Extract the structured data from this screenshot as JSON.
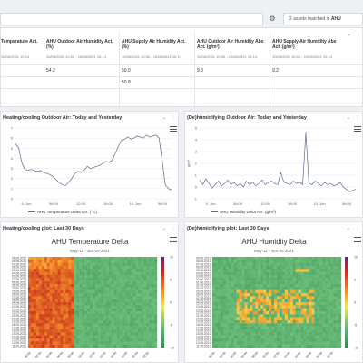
{
  "topbar": {
    "matched_count": "2 assets matched in",
    "matched_group": "AHU"
  },
  "table": {
    "columns": [
      {
        "title": "Temperature Act.",
        "sub": "10/06/2021 10:14",
        "value": "",
        "value2": ""
      },
      {
        "title": "AHU Outdoor Air Humidity Act. (%)",
        "sub": "10/06/2021 10:00 - 10/06/2021 10:14",
        "value": "54.2",
        "value2": ""
      },
      {
        "title": "AHU Supply Air Humidity Act. (%)",
        "sub": "10/06/2021 10:00 - 10/06/2021 10:14",
        "value": "50.0",
        "value2": "50.8"
      },
      {
        "title": "AHU Outdoor Air Humidity Abs Act. (g/m³)",
        "sub": "10/06/2021 10:00 - 10/06/2021 10:14",
        "value": "9.3",
        "value2": ""
      },
      {
        "title": "AHU Supply Air Humidity Abs Act. (g/m³)",
        "sub": "10/06/2021 10:00 - 10/06/2021 10:14",
        "value": "9.2",
        "value2": ""
      }
    ]
  },
  "panels": {
    "p1": {
      "title": "Heating/cooling Outdoor Air: Today and Yesterday",
      "legend": "AHU Temperature Delta Act. (°C)"
    },
    "p2": {
      "title": "(De)humidifying Outdoor Air: Today and Yesterday",
      "legend": "AHU Humidity Delta Act. (g/m³)"
    },
    "p3": {
      "title": "Heating/cooling plot: Last 30 Days",
      "chart_title": "AHU Temperature Delta",
      "chart_sub": "May-11 - Jun-09 2021"
    },
    "p4": {
      "title": "(De)humidifying plot: Last 30 Days",
      "chart_title": "AHU Humidity Delta",
      "chart_sub": "May-11 - Jun-09 2021"
    }
  },
  "chart_data": [
    {
      "type": "line",
      "title": "",
      "x_ticks": [
        "9. Jun",
        "06:00",
        "12:00",
        "18:00",
        "10. Jun",
        "06:00"
      ],
      "y_ticks": [
        "0",
        "1",
        "2",
        "3",
        "4",
        "5",
        "6",
        "7"
      ],
      "ylim": [
        0,
        7
      ],
      "series": [
        {
          "name": "AHU Temperature Delta Act. (°C)",
          "x": [
            0,
            2,
            4,
            6,
            8,
            10,
            12,
            14,
            16,
            18,
            20,
            22,
            24,
            26,
            28,
            30,
            32,
            34,
            36,
            38,
            40,
            42,
            44,
            46,
            48,
            50,
            52,
            54,
            56,
            58,
            60,
            62,
            64,
            66,
            68,
            70,
            72,
            74,
            76,
            78,
            80,
            82,
            84,
            86,
            88,
            90,
            92,
            94,
            96,
            98,
            100
          ],
          "values": [
            5.4,
            5.1,
            3.6,
            2.9,
            2.8,
            2.9,
            2.8,
            2.7,
            2.8,
            2.6,
            2.5,
            2.4,
            2.2,
            1.9,
            1.6,
            1.4,
            1.3,
            1.6,
            2.0,
            2.5,
            2.7,
            2.6,
            2.8,
            3.2,
            3.0,
            3.1,
            3.2,
            3.3,
            3.5,
            3.7,
            3.6,
            3.8,
            4.5,
            5.2,
            5.8,
            5.9,
            6.1,
            5.9,
            6.0,
            6.2,
            6.1,
            6.0,
            6.3,
            6.1,
            6.2,
            6.3,
            6.0,
            3.8,
            1.4,
            1.0,
            0.9
          ]
        }
      ]
    },
    {
      "type": "line",
      "title": "",
      "x_ticks": [
        "9. Jun",
        "06:00",
        "12:00",
        "18:00",
        "10. Jun",
        "06:00"
      ],
      "y_ticks": [
        "-1",
        "0",
        "1",
        "2",
        "3",
        "4",
        "5"
      ],
      "ylim": [
        -1,
        5
      ],
      "ylabel": "g/m³",
      "series": [
        {
          "name": "AHU Humidity Delta Act. (g/m³)",
          "x": [
            0,
            2,
            4,
            6,
            8,
            10,
            12,
            14,
            16,
            18,
            20,
            22,
            24,
            26,
            28,
            30,
            32,
            34,
            36,
            38,
            40,
            42,
            44,
            46,
            48,
            50,
            52,
            54,
            56,
            58,
            60,
            62,
            64,
            66,
            68,
            70,
            72,
            74,
            76,
            78,
            80,
            82,
            84,
            86,
            88,
            90,
            92,
            94,
            96,
            98,
            100
          ],
          "values": [
            0.6,
            0.2,
            0.7,
            0.3,
            -0.1,
            0.2,
            0.5,
            0.1,
            0.3,
            0.6,
            0.2,
            0.4,
            0.1,
            0.3,
            0.0,
            0.5,
            0.2,
            0.4,
            0.1,
            0.3,
            0.6,
            0.2,
            0.4,
            0.5,
            0.3,
            0.2,
            1.2,
            0.4,
            0.3,
            0.2,
            0.5,
            0.3,
            0.4,
            0.2,
            4.6,
            0.3,
            0.2,
            0.5,
            0.3,
            0.1,
            0.4,
            0.2,
            0.3,
            0.1,
            0.2,
            0.4,
            0.0,
            -0.2,
            -0.4,
            -0.3,
            -0.2
          ]
        }
      ]
    },
    {
      "type": "heatmap",
      "title": "AHU Temperature Delta",
      "subtitle": "May-11 - Jun-09 2021",
      "y_labels": [
        "09.06.2021",
        "08.06.2021",
        "07.06.2021",
        "06.06.2021",
        "05.06.2021",
        "04.06.2021",
        "03.06.2021",
        "02.06.2021",
        "01.06.2021",
        "31.05.2021",
        "30.05.2021",
        "29.05.2021",
        "28.05.2021",
        "27.05.2021",
        "26.05.2021",
        "25.05.2021",
        "24.05.2021",
        "23.05.2021",
        "22.05.2021",
        "21.05.2021",
        "20.05.2021",
        "19.05.2021",
        "18.05.2021",
        "17.05.2021",
        "16.05.2021",
        "15.05.2021",
        "14.05.2021",
        "13.05.2021",
        "12.05.2021",
        "11.05.2021"
      ],
      "x_labels": [
        "00:00",
        "02:00",
        "04:00",
        "06:00",
        "08:00",
        "10:00",
        "12:00",
        "14:00",
        "16:00",
        "18:00",
        "20:00",
        "22:00"
      ],
      "colorbar": [
        10,
        5,
        0,
        -5,
        -10
      ]
    },
    {
      "type": "heatmap",
      "title": "AHU Humidity Delta",
      "subtitle": "May-11 - Jun-09 2021",
      "y_labels": [
        "09.06.2021",
        "08.06.2021",
        "07.06.2021",
        "06.06.2021",
        "05.06.2021",
        "04.06.2021",
        "03.06.2021",
        "02.06.2021",
        "01.06.2021",
        "31.05.2021",
        "30.05.2021",
        "29.05.2021",
        "28.05.2021",
        "27.05.2021",
        "26.05.2021",
        "25.05.2021",
        "24.05.2021",
        "23.05.2021",
        "22.05.2021",
        "21.05.2021",
        "20.05.2021",
        "19.05.2021",
        "18.05.2021",
        "17.05.2021",
        "16.05.2021",
        "15.05.2021",
        "14.05.2021",
        "13.05.2021",
        "12.05.2021",
        "11.05.2021"
      ],
      "x_labels": [
        "00:00",
        "02:00",
        "04:00",
        "06:00",
        "08:00",
        "10:00",
        "12:00",
        "14:00",
        "16:00",
        "18:00",
        "20:00",
        "22:00"
      ],
      "colorbar": [
        10,
        5,
        0,
        -5,
        -10
      ]
    }
  ]
}
